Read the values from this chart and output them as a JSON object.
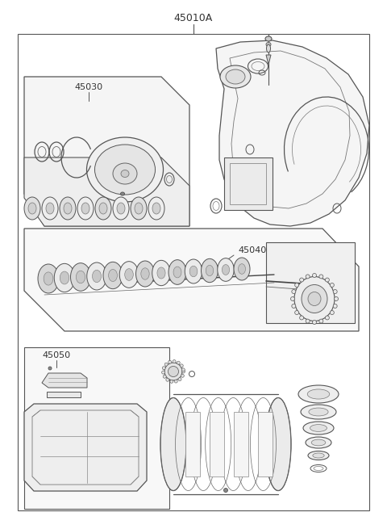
{
  "title": "45010A",
  "label_45030": "45030",
  "label_45040": "45040",
  "label_45050": "45050",
  "bg_color": "#ffffff",
  "lc": "#555555",
  "lc2": "#888888",
  "fig_width": 4.8,
  "fig_height": 6.55,
  "dpi": 100
}
